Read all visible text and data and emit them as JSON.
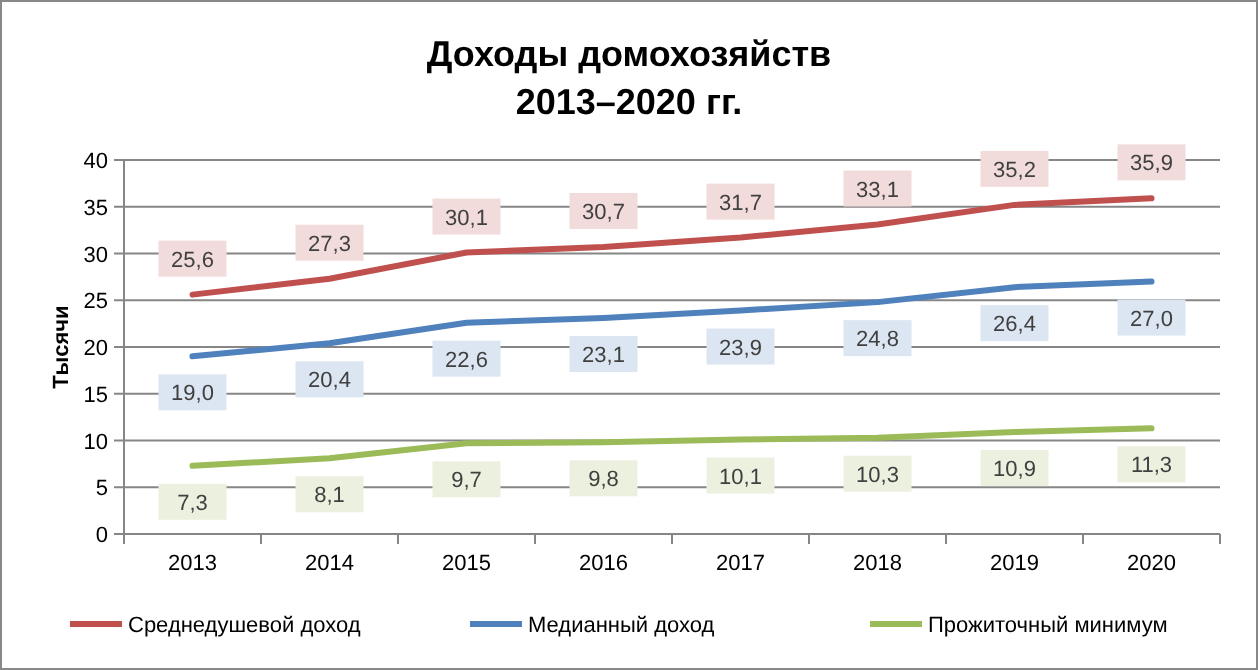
{
  "chart_data": {
    "type": "line",
    "title": "Доходы домохозяйств\n2013–2020 гг.",
    "ylabel": "Тысячи",
    "categories": [
      "2013",
      "2014",
      "2015",
      "2016",
      "2017",
      "2018",
      "2019",
      "2020"
    ],
    "series": [
      {
        "name": "Среднедушевой доход",
        "color": "#c0504d",
        "values": [
          25.6,
          27.3,
          30.1,
          30.7,
          31.7,
          33.1,
          35.2,
          35.9
        ],
        "value_labels": [
          "25,6",
          "27,3",
          "30,1",
          "30,7",
          "31,7",
          "33,1",
          "35,2",
          "35,9"
        ]
      },
      {
        "name": "Медианный доход",
        "color": "#4f81bd",
        "values": [
          19.0,
          20.4,
          22.6,
          23.1,
          23.9,
          24.8,
          26.4,
          27.0
        ],
        "value_labels": [
          "19,0",
          "20,4",
          "22,6",
          "23,1",
          "23,9",
          "24,8",
          "26,4",
          "27,0"
        ]
      },
      {
        "name": "Прожиточный минимум",
        "color": "#9bbb59",
        "values": [
          7.3,
          8.1,
          9.7,
          9.8,
          10.1,
          10.3,
          10.9,
          11.3
        ],
        "value_labels": [
          "7,3",
          "8,1",
          "9,7",
          "9,8",
          "10,1",
          "10,3",
          "10,9",
          "11,3"
        ]
      }
    ],
    "ylim": [
      0,
      40
    ],
    "yticks": [
      0,
      5,
      10,
      15,
      20,
      25,
      30,
      35,
      40
    ],
    "grid": "y",
    "legend": "bottom",
    "marker": "none",
    "line_style": "solid"
  }
}
